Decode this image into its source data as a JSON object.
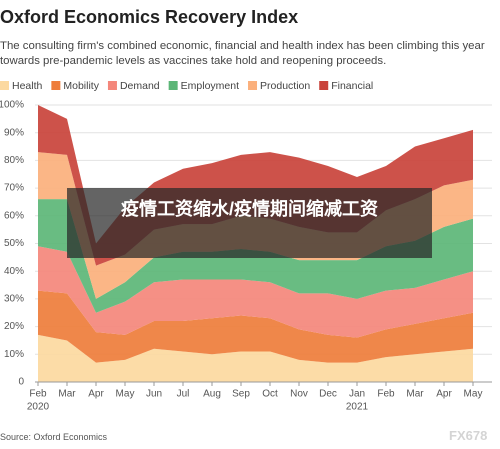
{
  "chart_data": {
    "type": "stacked_area",
    "title": "Oxford Economics Recovery Index",
    "subtitle": "The consulting firm's combined economic, financial and health index has been climbing this year towards pre-pandemic levels as vaccines take hold and reopening proceeds.",
    "categories": [
      "Feb",
      "Mar",
      "Apr",
      "May",
      "Jun",
      "Jul",
      "Aug",
      "Sep",
      "Oct",
      "Nov",
      "Dec",
      "Jan",
      "Feb",
      "Mar",
      "Apr",
      "May"
    ],
    "year_labels": [
      "2020",
      null,
      null,
      null,
      null,
      null,
      null,
      null,
      null,
      null,
      null,
      "2021",
      null,
      null,
      null,
      null
    ],
    "ylim": [
      0,
      100
    ],
    "yticks": [
      0,
      {
        "value": 10,
        "label": "10%"
      },
      {
        "value": 20,
        "label": "20%"
      },
      {
        "value": 30,
        "label": "30%"
      },
      {
        "value": 40,
        "label": "40%"
      },
      {
        "value": 50,
        "label": "50%"
      },
      {
        "value": 60,
        "label": "60%"
      },
      {
        "value": 70,
        "label": "70%"
      },
      {
        "value": 80,
        "label": "80%"
      },
      {
        "value": 90,
        "label": "90%"
      },
      {
        "value": 100,
        "label": "100%"
      }
    ],
    "grid": true,
    "series": [
      {
        "name": "Health",
        "color": "#fcd9a0",
        "values": [
          17,
          15,
          7,
          8,
          12,
          11,
          10,
          11,
          11,
          8,
          7,
          7,
          9,
          10,
          11,
          12
        ]
      },
      {
        "name": "Mobility",
        "color": "#ee7d3b",
        "values": [
          16,
          17,
          11,
          9,
          10,
          11,
          13,
          13,
          12,
          11,
          10,
          9,
          10,
          11,
          12,
          13
        ]
      },
      {
        "name": "Demand",
        "color": "#f4877b",
        "values": [
          16,
          15,
          7,
          12,
          14,
          15,
          14,
          13,
          13,
          13,
          15,
          14,
          14,
          13,
          14,
          15
        ]
      },
      {
        "name": "Employment",
        "color": "#5cb677",
        "values": [
          17,
          19,
          5,
          7,
          9,
          10,
          10,
          11,
          11,
          12,
          12,
          14,
          16,
          17,
          19,
          19
        ]
      },
      {
        "name": "Production",
        "color": "#fbb07c",
        "values": [
          17,
          16,
          12,
          10,
          10,
          10,
          10,
          12,
          12,
          12,
          10,
          10,
          13,
          15,
          15,
          14
        ]
      },
      {
        "name": "Financial",
        "color": "#c9433b",
        "values": [
          17,
          13,
          8,
          17,
          17,
          20,
          22,
          22,
          24,
          25,
          24,
          20,
          16,
          19,
          17,
          18
        ]
      }
    ]
  },
  "headline": "疫情工资缩水/疫情期间缩减工资",
  "source": "Source: Oxford Economics",
  "watermark": "FX678"
}
